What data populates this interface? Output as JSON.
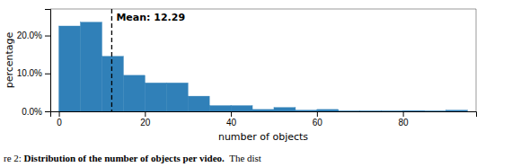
{
  "chart_data": {
    "type": "histogram",
    "bins": [
      0,
      5,
      10,
      15,
      20,
      25,
      30,
      35,
      40,
      45,
      50,
      55,
      60,
      65,
      70,
      75,
      80,
      85,
      90,
      95
    ],
    "values": [
      22.5,
      23.5,
      14.5,
      9.5,
      7.5,
      7.5,
      4.0,
      1.5,
      1.5,
      0.5,
      1.0,
      0.3,
      0.5,
      0.1,
      0.1,
      0.1,
      0.2,
      0.1,
      0.3
    ],
    "color": "#3080b8",
    "xlabel": "number of objects",
    "ylabel": "percentage",
    "xlim": [
      -2,
      97
    ],
    "ylim": [
      0,
      27
    ],
    "xticks": [
      0,
      20,
      40,
      60,
      80
    ],
    "yticks": [
      {
        "value": 0.0,
        "label": "0.0%"
      },
      {
        "value": 10.0,
        "label": "10.0%"
      },
      {
        "value": 20.0,
        "label": "20.0%"
      }
    ],
    "grid": false,
    "mean": {
      "value": 12.29,
      "label": "Mean: 12.29",
      "line_style": "dashed"
    },
    "caption": "re 2: Distribution of the number of objects per video.  The dist",
    "caption_bold": "Distribution of the number of objects per video."
  }
}
